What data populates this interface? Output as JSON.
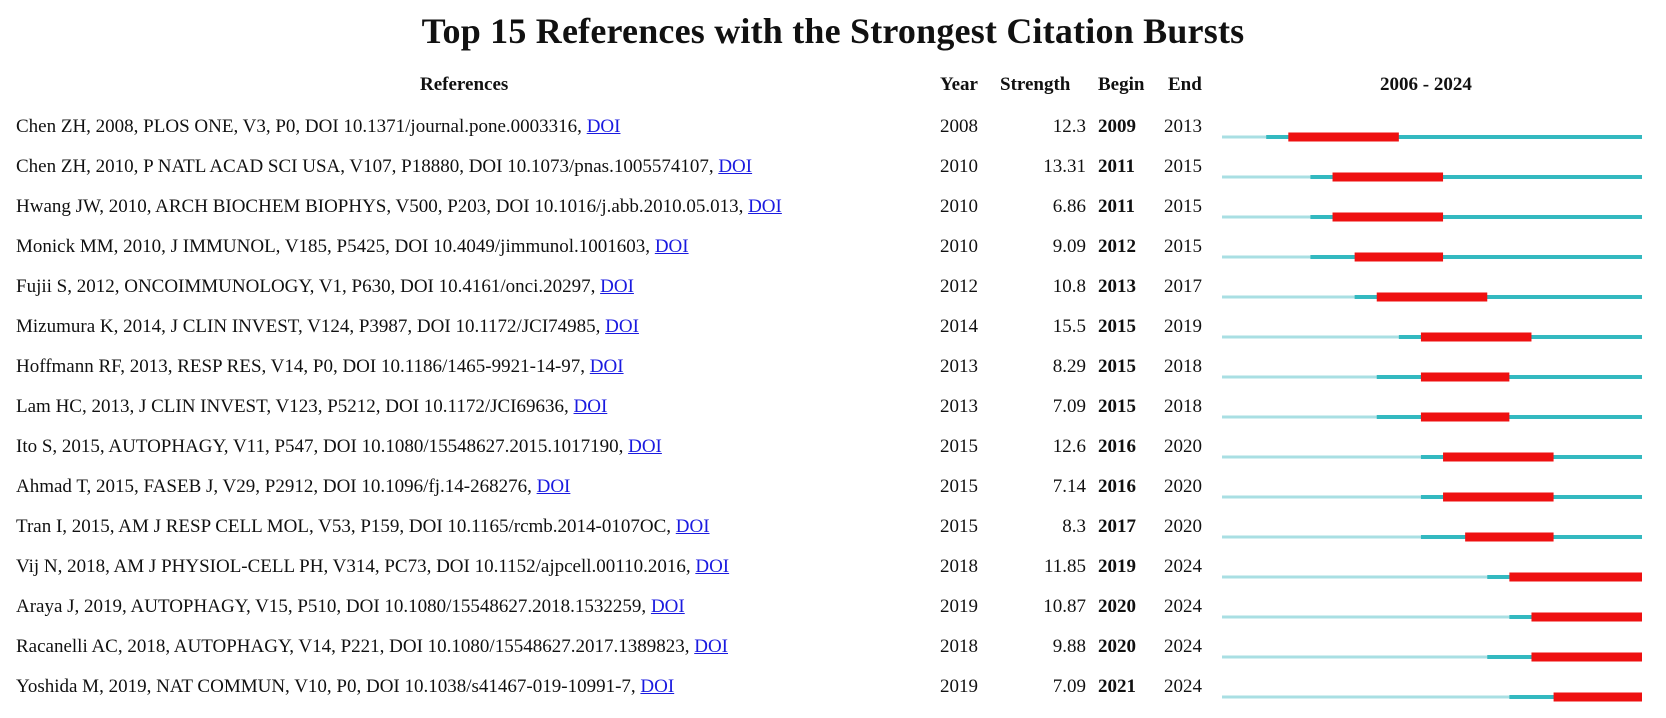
{
  "chart_data": {
    "type": "table",
    "title": "Top 15 References with the Strongest Citation Bursts",
    "columns": [
      "References",
      "Year",
      "Strength",
      "Begin",
      "End",
      "2006 - 2024"
    ],
    "range": [
      2006,
      2024
    ],
    "doi_label": "DOI",
    "colors": {
      "baseline": "#a9dfe3",
      "active": "#33b9c0",
      "burst": "#ee1111",
      "link": "#1a1ae0"
    },
    "rows": [
      {
        "reference": "Chen ZH, 2008, PLOS ONE, V3, P0, DOI 10.1371/journal.pone.0003316,",
        "year": 2008,
        "strength": "12.3",
        "begin": 2009,
        "end": 2013
      },
      {
        "reference": "Chen ZH, 2010, P NATL ACAD SCI USA, V107, P18880, DOI 10.1073/pnas.1005574107,",
        "year": 2010,
        "strength": "13.31",
        "begin": 2011,
        "end": 2015
      },
      {
        "reference": "Hwang JW, 2010, ARCH BIOCHEM BIOPHYS, V500, P203, DOI 10.1016/j.abb.2010.05.013,",
        "year": 2010,
        "strength": "6.86",
        "begin": 2011,
        "end": 2015
      },
      {
        "reference": "Monick MM, 2010, J IMMUNOL, V185, P5425, DOI 10.4049/jimmunol.1001603,",
        "year": 2010,
        "strength": "9.09",
        "begin": 2012,
        "end": 2015
      },
      {
        "reference": "Fujii S, 2012, ONCOIMMUNOLOGY, V1, P630, DOI 10.4161/onci.20297,",
        "year": 2012,
        "strength": "10.8",
        "begin": 2013,
        "end": 2017
      },
      {
        "reference": "Mizumura K, 2014, J CLIN INVEST, V124, P3987, DOI 10.1172/JCI74985,",
        "year": 2014,
        "strength": "15.5",
        "begin": 2015,
        "end": 2019
      },
      {
        "reference": "Hoffmann RF, 2013, RESP RES, V14, P0, DOI 10.1186/1465-9921-14-97,",
        "year": 2013,
        "strength": "8.29",
        "begin": 2015,
        "end": 2018
      },
      {
        "reference": "Lam HC, 2013, J CLIN INVEST, V123, P5212, DOI 10.1172/JCI69636,",
        "year": 2013,
        "strength": "7.09",
        "begin": 2015,
        "end": 2018
      },
      {
        "reference": "Ito S, 2015, AUTOPHAGY, V11, P547, DOI 10.1080/15548627.2015.1017190,",
        "year": 2015,
        "strength": "12.6",
        "begin": 2016,
        "end": 2020
      },
      {
        "reference": "Ahmad T, 2015, FASEB J, V29, P2912, DOI 10.1096/fj.14-268276,",
        "year": 2015,
        "strength": "7.14",
        "begin": 2016,
        "end": 2020
      },
      {
        "reference": "Tran I, 2015, AM J RESP CELL MOL, V53, P159, DOI 10.1165/rcmb.2014-0107OC,",
        "year": 2015,
        "strength": "8.3",
        "begin": 2017,
        "end": 2020
      },
      {
        "reference": "Vij N, 2018, AM J PHYSIOL-CELL PH, V314, PC73, DOI 10.1152/ajpcell.00110.2016,",
        "year": 2018,
        "strength": "11.85",
        "begin": 2019,
        "end": 2024
      },
      {
        "reference": "Araya J, 2019, AUTOPHAGY, V15, P510, DOI 10.1080/15548627.2018.1532259,",
        "year": 2019,
        "strength": "10.87",
        "begin": 2020,
        "end": 2024
      },
      {
        "reference": "Racanelli AC, 2018, AUTOPHAGY, V14, P221, DOI 10.1080/15548627.2017.1389823,",
        "year": 2018,
        "strength": "9.88",
        "begin": 2020,
        "end": 2024
      },
      {
        "reference": "Yoshida M, 2019, NAT COMMUN, V10, P0, DOI 10.1038/s41467-019-10991-7,",
        "year": 2019,
        "strength": "7.09",
        "begin": 2021,
        "end": 2024
      }
    ]
  }
}
